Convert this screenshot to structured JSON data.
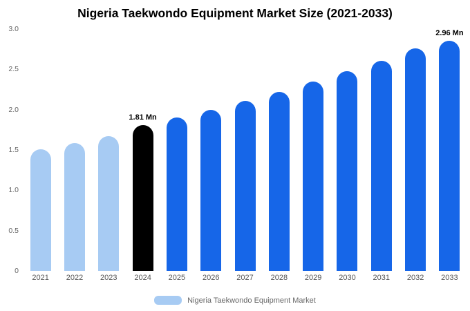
{
  "title": "Nigeria Taekwondo Equipment Market Size (2021-2033)",
  "legend": {
    "label": "Nigeria Taekwondo Equipment Market",
    "swatch_color": "#a7cbf3"
  },
  "colors": {
    "historical_bar": "#a7cbf3",
    "current_bar": "#000000",
    "forecast_bar": "#1666e8",
    "axis_text": "#666666",
    "title_text": "#000000",
    "background": "#ffffff"
  },
  "chart_data": {
    "type": "bar",
    "title": "Nigeria Taekwondo Equipment Market Size (2021-2033)",
    "categories": [
      "2021",
      "2022",
      "2023",
      "2024",
      "2025",
      "2026",
      "2027",
      "2028",
      "2029",
      "2030",
      "2031",
      "2032",
      "2033"
    ],
    "values": [
      1.51,
      1.59,
      1.67,
      1.81,
      1.9,
      2.0,
      2.11,
      2.22,
      2.35,
      2.48,
      2.61,
      2.76,
      2.96
    ],
    "bar_colors": [
      "#a7cbf3",
      "#a7cbf3",
      "#a7cbf3",
      "#000000",
      "#1666e8",
      "#1666e8",
      "#1666e8",
      "#1666e8",
      "#1666e8",
      "#1666e8",
      "#1666e8",
      "#1666e8",
      "#1666e8"
    ],
    "annotations": [
      {
        "index": 3,
        "text": "1.81 Mn"
      },
      {
        "index": 12,
        "text": "2.96 Mn"
      }
    ],
    "xlabel": "",
    "ylabel": "",
    "ylim": [
      0,
      3.0
    ],
    "yticks": [
      0,
      0.5,
      1.0,
      1.5,
      2.0,
      2.5,
      3.0
    ],
    "ytick_labels": [
      "0",
      "0.5",
      "1.0",
      "1.5",
      "2.0",
      "2.5",
      "3.0"
    ],
    "grid": false,
    "legend_position": "bottom",
    "unit": "Mn"
  }
}
